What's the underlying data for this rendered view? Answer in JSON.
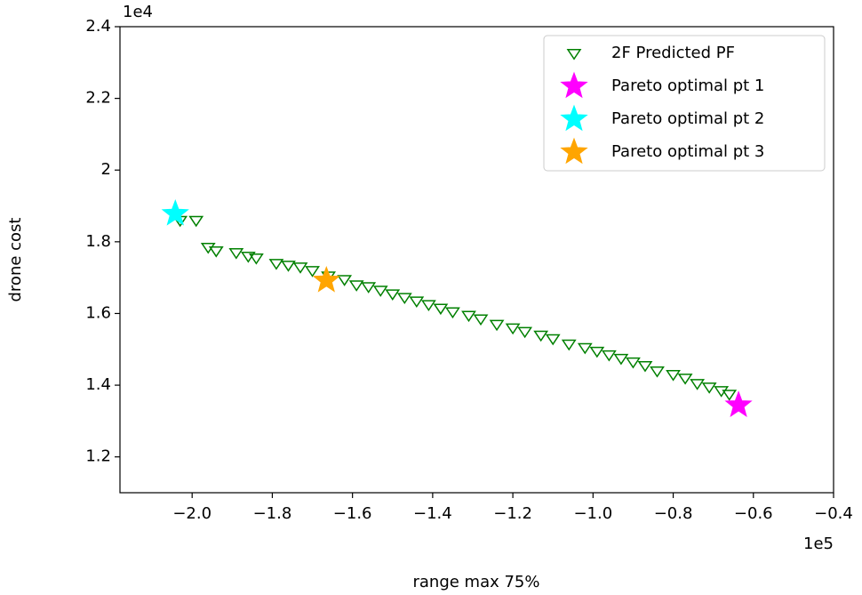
{
  "chart_data": {
    "type": "scatter",
    "x_label": "range max 75%",
    "y_label": "drone cost",
    "x_offset_text": "1e5",
    "y_offset_text": "1e4",
    "xlim": [
      -2.18,
      -0.4
    ],
    "ylim": [
      1.1,
      2.4
    ],
    "xticks": [
      {
        "value": -2.0,
        "label": "−2.0"
      },
      {
        "value": -1.8,
        "label": "−1.8"
      },
      {
        "value": -1.6,
        "label": "−1.6"
      },
      {
        "value": -1.4,
        "label": "−1.4"
      },
      {
        "value": -1.2,
        "label": "−1.2"
      },
      {
        "value": -1.0,
        "label": "−1.0"
      },
      {
        "value": -0.8,
        "label": "−0.8"
      },
      {
        "value": -0.6,
        "label": "−0.6"
      },
      {
        "value": -0.4,
        "label": "−0.4"
      }
    ],
    "yticks": [
      1.2,
      1.4,
      1.6,
      1.8,
      2.0,
      2.2,
      2.4
    ],
    "legend": "upper right",
    "series": [
      {
        "name": "2F Predicted PF",
        "color": "#008000",
        "marker": "triangle-down",
        "filled": false,
        "x": [
          -2.03,
          -1.99,
          -1.96,
          -1.94,
          -1.89,
          -1.86,
          -1.84,
          -1.79,
          -1.76,
          -1.73,
          -1.7,
          -1.66,
          -1.62,
          -1.59,
          -1.56,
          -1.53,
          -1.5,
          -1.47,
          -1.44,
          -1.41,
          -1.38,
          -1.35,
          -1.31,
          -1.28,
          -1.24,
          -1.2,
          -1.17,
          -1.13,
          -1.1,
          -1.06,
          -1.02,
          -0.99,
          -0.96,
          -0.93,
          -0.9,
          -0.87,
          -0.84,
          -0.8,
          -0.77,
          -0.74,
          -0.71,
          -0.68,
          -0.66
        ],
        "values": [
          1.86,
          1.86,
          1.785,
          1.775,
          1.77,
          1.76,
          1.755,
          1.74,
          1.735,
          1.73,
          1.72,
          1.705,
          1.695,
          1.68,
          1.675,
          1.665,
          1.655,
          1.645,
          1.635,
          1.625,
          1.615,
          1.605,
          1.595,
          1.585,
          1.57,
          1.56,
          1.55,
          1.54,
          1.53,
          1.515,
          1.505,
          1.495,
          1.485,
          1.475,
          1.465,
          1.455,
          1.44,
          1.43,
          1.42,
          1.405,
          1.395,
          1.385,
          1.375
        ]
      },
      {
        "name": "Pareto optimal pt 1",
        "color": "#ff00ff",
        "marker": "star",
        "filled": true,
        "x": [
          -0.637
        ],
        "values": [
          1.344
        ]
      },
      {
        "name": "Pareto optimal pt 2",
        "color": "#00ffff",
        "marker": "star",
        "filled": true,
        "x": [
          -2.042
        ],
        "values": [
          1.878
        ]
      },
      {
        "name": "Pareto optimal pt 3",
        "color": "#ffa500",
        "marker": "star",
        "filled": true,
        "x": [
          -1.665
        ],
        "values": [
          1.692
        ]
      }
    ]
  }
}
